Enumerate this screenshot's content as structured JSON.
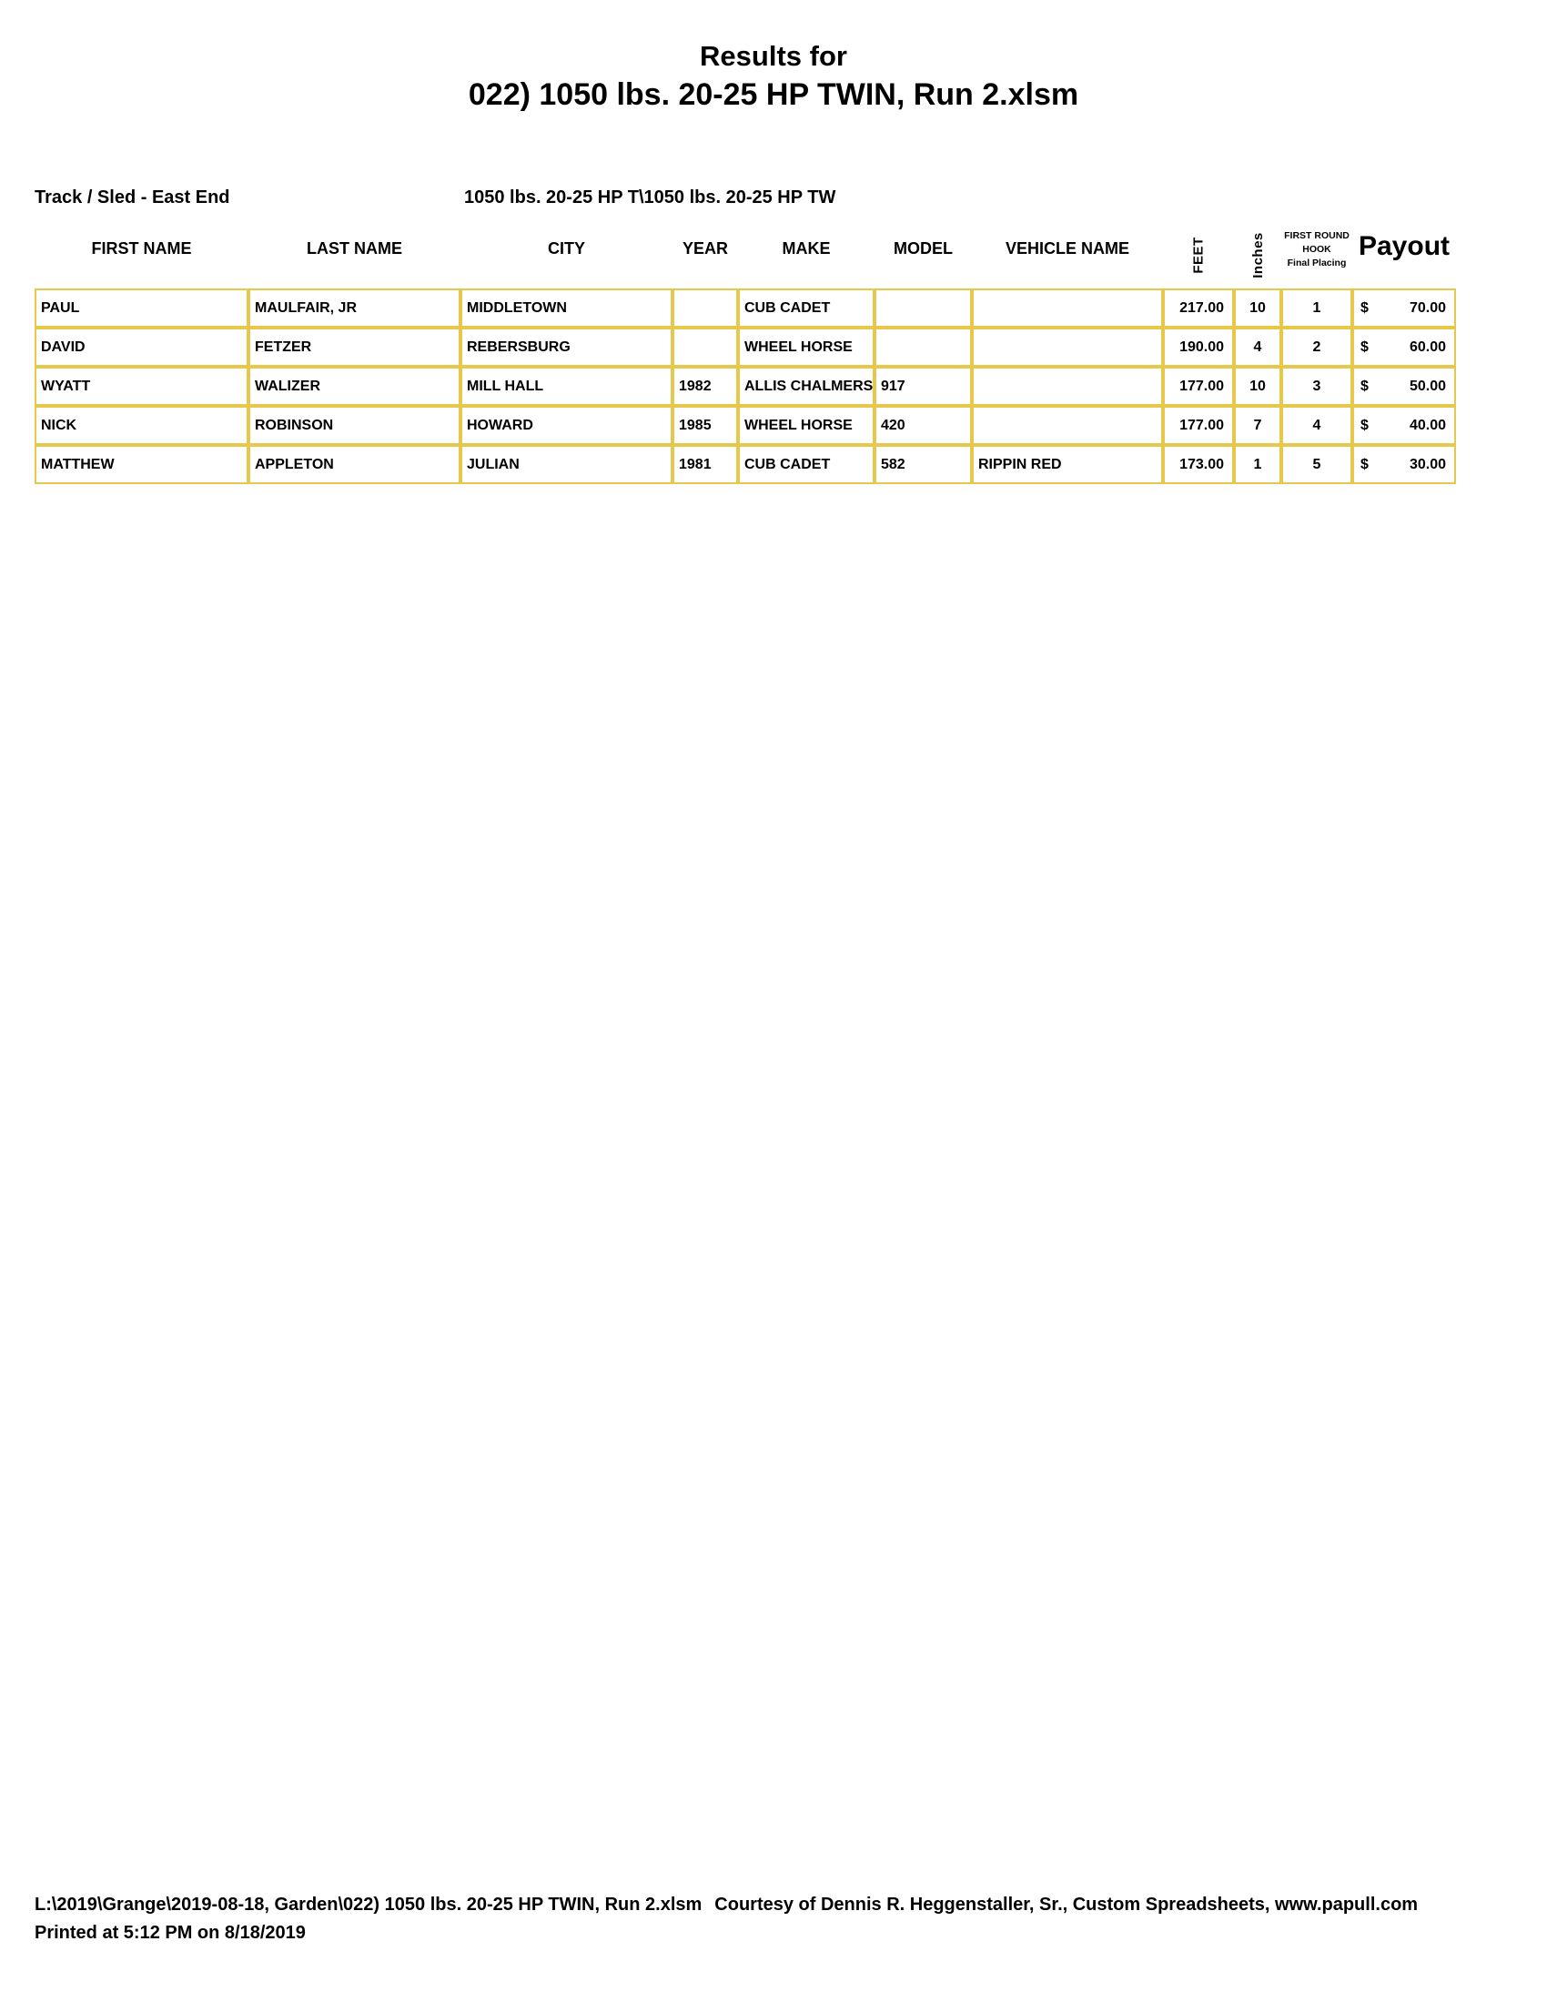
{
  "page": {
    "title_line1": "Results for",
    "title_line2": "022) 1050 lbs. 20-25 HP TWIN, Run 2.xlsm"
  },
  "info": {
    "track_sled": "Track / Sled - East End",
    "class_name_clipped": "1050 lbs. 20-25 HP T\\1050 lbs. 20-25 HP TW"
  },
  "table": {
    "headers": {
      "first": "FIRST NAME",
      "last": "LAST NAME",
      "city": "CITY",
      "year": "YEAR",
      "make": "MAKE",
      "model": "MODEL",
      "vehicle": "VEHICLE NAME",
      "feet": "FEET",
      "inches": "Inches",
      "hook_line1": "FIRST ROUND",
      "hook_line2": "HOOK",
      "hook_line3": "Final Placing",
      "payout": "Payout"
    },
    "currency_symbol": "$",
    "rows": [
      {
        "first": "PAUL",
        "last": "MAULFAIR, JR",
        "city": "MIDDLETOWN",
        "year": "",
        "make": "CUB CADET",
        "model": "",
        "vehicle": "",
        "feet": "217.00",
        "inches": "10",
        "placing": "1",
        "payout": "70.00"
      },
      {
        "first": "DAVID",
        "last": "FETZER",
        "city": "REBERSBURG",
        "year": "",
        "make": "WHEEL HORSE",
        "model": "",
        "vehicle": "",
        "feet": "190.00",
        "inches": "4",
        "placing": "2",
        "payout": "60.00"
      },
      {
        "first": "WYATT",
        "last": "WALIZER",
        "city": "MILL HALL",
        "year": "1982",
        "make": "ALLIS CHALMERS",
        "model": "917",
        "vehicle": "",
        "feet": "177.00",
        "inches": "10",
        "placing": "3",
        "payout": "50.00"
      },
      {
        "first": "NICK",
        "last": "ROBINSON",
        "city": "HOWARD",
        "year": "1985",
        "make": "WHEEL HORSE",
        "model": "420",
        "vehicle": "",
        "feet": "177.00",
        "inches": "7",
        "placing": "4",
        "payout": "40.00"
      },
      {
        "first": "MATTHEW",
        "last": "APPLETON",
        "city": "JULIAN",
        "year": "1981",
        "make": "CUB CADET",
        "model": "582",
        "vehicle": "RIPPIN RED",
        "feet": "173.00",
        "inches": "1",
        "placing": "5",
        "payout": "30.00"
      }
    ]
  },
  "footer": {
    "file_path": "L:\\2019\\Grange\\2019-08-18, Garden\\022) 1050 lbs. 20-25 HP TWIN, Run 2.xlsm",
    "courtesy": "Courtesy of Dennis R. Heggenstaller, Sr., Custom Spreadsheets, www.papull.com",
    "printed": "Printed at 5:12 PM on 8/18/2019"
  },
  "colors": {
    "table_border": "#E8C84A"
  }
}
